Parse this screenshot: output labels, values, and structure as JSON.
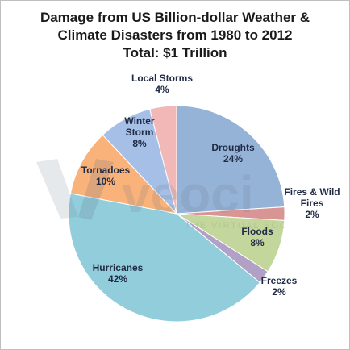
{
  "chart_data": {
    "type": "pie",
    "title_lines": [
      "Damage from US Billion-dollar Weather &",
      "Climate Disasters from 1980 to 2012",
      "Total: $1 Trillion"
    ],
    "slices": [
      {
        "name": "Droughts",
        "label_lines": [
          "Droughts",
          "24%"
        ],
        "value": 24,
        "color": "#95b3d7"
      },
      {
        "name": "Fires & Wild Fires",
        "label_lines": [
          "Fires & Wild",
          "Fires",
          "2%"
        ],
        "value": 2,
        "color": "#d99594"
      },
      {
        "name": "Floods",
        "label_lines": [
          "Floods",
          "8%"
        ],
        "value": 8,
        "color": "#c3d69b"
      },
      {
        "name": "Freezes",
        "label_lines": [
          "Freezes",
          "2%"
        ],
        "value": 2,
        "color": "#b2a1c7"
      },
      {
        "name": "Hurricanes",
        "label_lines": [
          "Hurricanes",
          "42%"
        ],
        "value": 42,
        "color": "#92cddc"
      },
      {
        "name": "Tornadoes",
        "label_lines": [
          "Tornadoes",
          "10%"
        ],
        "value": 10,
        "color": "#fab27b"
      },
      {
        "name": "Winter Storm",
        "label_lines": [
          "Winter",
          "Storm",
          "8%"
        ],
        "value": 8,
        "color": "#a6bfe6"
      },
      {
        "name": "Local Storms",
        "label_lines": [
          "Local Storms",
          "4%"
        ],
        "value": 4,
        "color": "#f2b8b7"
      }
    ],
    "start_angle_deg": 0,
    "direction": "clockwise",
    "legend": "none"
  },
  "watermark": {
    "text": "veoci",
    "tagline": "THE VIRTUAL EOC"
  }
}
